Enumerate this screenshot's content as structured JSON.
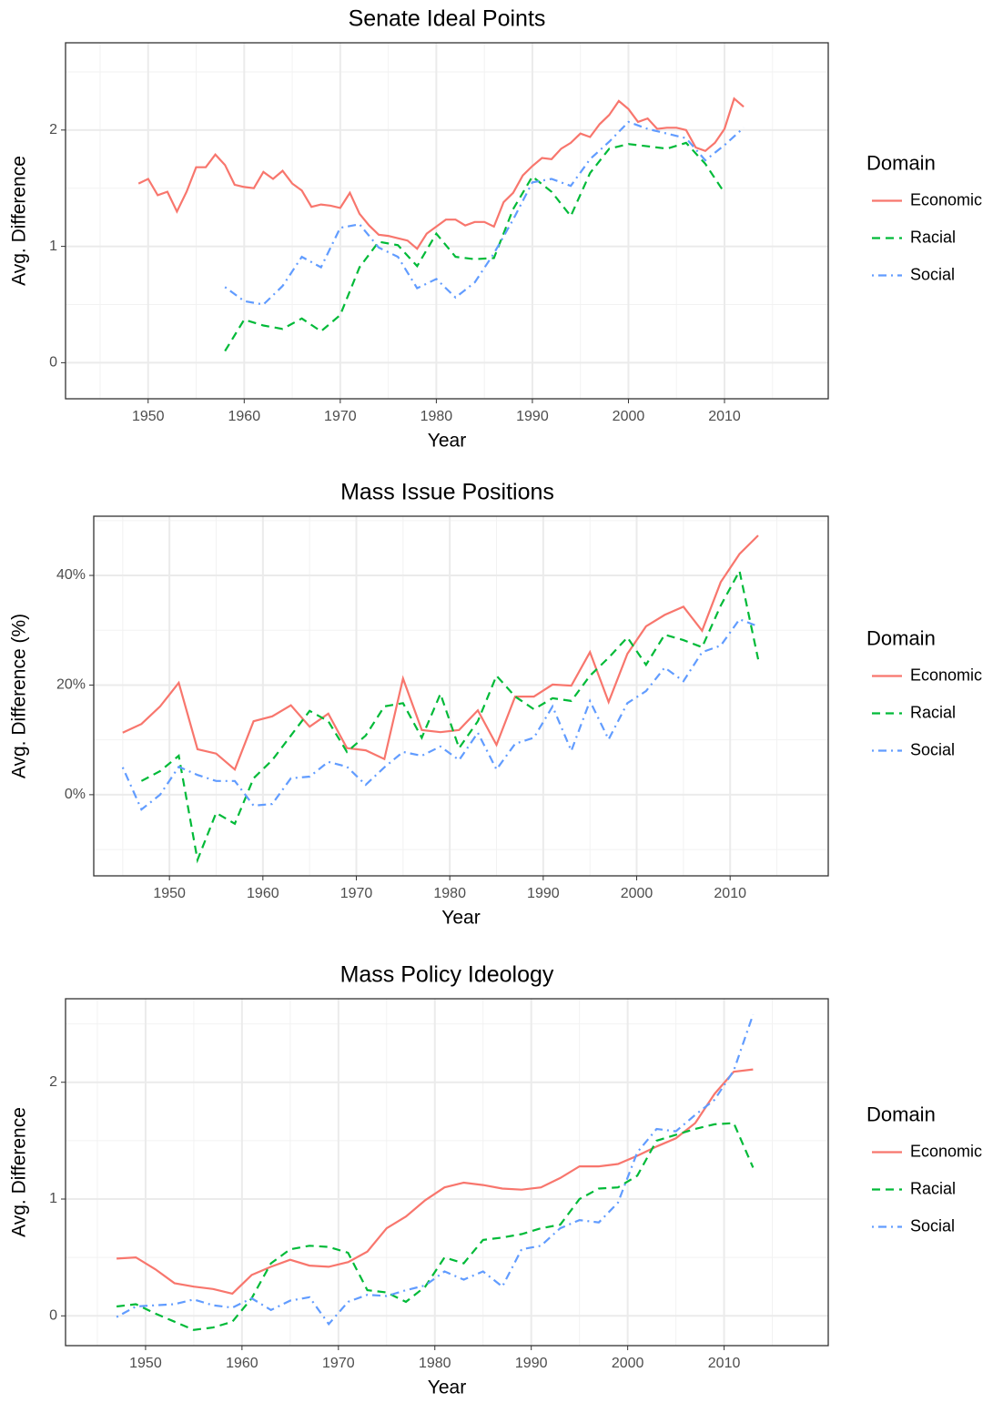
{
  "chart_data": [
    {
      "type": "line",
      "title": "Senate Ideal Points",
      "xlabel": "Year",
      "ylabel": "Avg. Difference",
      "legend_title": "Domain",
      "legend": "right",
      "grid": true,
      "minor_grid": true,
      "xlim": [
        1941.4,
        2020.8
      ],
      "ylim": [
        -0.31,
        2.75
      ],
      "xticks": [
        1950,
        1960,
        1970,
        1980,
        1990,
        2000,
        2010
      ],
      "yticks": [
        0,
        1,
        2
      ],
      "series": [
        {
          "name": "Economic",
          "color": "#F8766D",
          "dash": "solid",
          "x": [
            1949,
            1950,
            1951,
            1952,
            1953,
            1954,
            1955,
            1956,
            1957,
            1958,
            1959,
            1960,
            1961,
            1962,
            1963,
            1964,
            1965,
            1966,
            1967,
            1968,
            1969,
            1970,
            1971,
            1972,
            1973,
            1974,
            1975,
            1976,
            1977,
            1978,
            1979,
            1980,
            1981,
            1982,
            1983,
            1984,
            1985,
            1986,
            1987,
            1988,
            1989,
            1990,
            1991,
            1992,
            1993,
            1994,
            1995,
            1996,
            1997,
            1998,
            1999,
            2000,
            2001,
            2002,
            2003,
            2004,
            2005,
            2006,
            2007,
            2008,
            2009,
            2010,
            2011,
            2012
          ],
          "values": [
            1.54,
            1.58,
            1.44,
            1.47,
            1.3,
            1.47,
            1.68,
            1.68,
            1.79,
            1.7,
            1.53,
            1.51,
            1.5,
            1.64,
            1.58,
            1.65,
            1.54,
            1.48,
            1.34,
            1.36,
            1.35,
            1.33,
            1.46,
            1.28,
            1.18,
            1.1,
            1.09,
            1.07,
            1.05,
            0.98,
            1.11,
            1.17,
            1.23,
            1.23,
            1.18,
            1.21,
            1.21,
            1.17,
            1.38,
            1.46,
            1.61,
            1.69,
            1.76,
            1.75,
            1.84,
            1.89,
            1.97,
            1.94,
            2.05,
            2.13,
            2.25,
            2.18,
            2.07,
            2.1,
            2.01,
            2.02,
            2.02,
            2.0,
            1.85,
            1.82,
            1.89,
            2.01,
            2.27,
            2.2
          ]
        },
        {
          "name": "Racial",
          "color": "#00BA38",
          "dash": "dashed",
          "x": [
            1958,
            1960,
            1962,
            1964,
            1966,
            1968,
            1970,
            1972,
            1974,
            1976,
            1978,
            1980,
            1982,
            1984,
            1986,
            1988,
            1990,
            1992,
            1994,
            1996,
            1998,
            2000,
            2002,
            2004,
            2006,
            2008,
            2010
          ],
          "values": [
            0.1,
            0.37,
            0.32,
            0.29,
            0.38,
            0.27,
            0.41,
            0.82,
            1.04,
            1.01,
            0.83,
            1.11,
            0.91,
            0.89,
            0.9,
            1.32,
            1.6,
            1.47,
            1.26,
            1.63,
            1.84,
            1.88,
            1.86,
            1.84,
            1.89,
            1.71,
            1.46
          ]
        },
        {
          "name": "Social",
          "color": "#619CFF",
          "dash": "dotdash",
          "x": [
            1958,
            1960,
            1962,
            1964,
            1966,
            1968,
            1970,
            1972,
            1974,
            1976,
            1978,
            1980,
            1982,
            1984,
            1986,
            1988,
            1990,
            1992,
            1994,
            1996,
            1998,
            2000,
            2002,
            2004,
            2006,
            2008,
            2010,
            2012
          ],
          "values": [
            0.65,
            0.53,
            0.5,
            0.66,
            0.91,
            0.82,
            1.16,
            1.19,
            0.99,
            0.91,
            0.64,
            0.72,
            0.56,
            0.69,
            0.94,
            1.23,
            1.55,
            1.58,
            1.52,
            1.75,
            1.9,
            2.07,
            2.01,
            1.97,
            1.93,
            1.74,
            1.87,
            2.02
          ]
        }
      ]
    },
    {
      "type": "line",
      "title": "Mass Issue Positions",
      "xlabel": "Year",
      "ylabel": "Avg. Difference (%)",
      "legend_title": "Domain",
      "legend": "right",
      "grid": true,
      "minor_grid": true,
      "xlim": [
        1941.9,
        2020.5
      ],
      "ylim": [
        -14.8,
        50.8
      ],
      "xticks": [
        1950,
        1960,
        1970,
        1980,
        1990,
        2000,
        2010
      ],
      "yticks": [
        {
          "value": 0,
          "label": "0%"
        },
        {
          "value": 20,
          "label": "20%"
        },
        {
          "value": 40,
          "label": "40%"
        }
      ],
      "series": [
        {
          "name": "Economic",
          "color": "#F8766D",
          "dash": "solid",
          "x": [
            1945,
            1947,
            1949,
            1951,
            1953,
            1955,
            1957,
            1959,
            1961,
            1963,
            1965,
            1967,
            1969,
            1971,
            1973,
            1975,
            1977,
            1979,
            1981,
            1983,
            1985,
            1987,
            1989,
            1991,
            1993,
            1995,
            1997,
            1999,
            2001,
            2003,
            2005,
            2007,
            2009,
            2011,
            2013
          ],
          "values": [
            11.3,
            12.9,
            16.1,
            20.4,
            8.3,
            7.5,
            4.6,
            13.4,
            14.3,
            16.3,
            12.4,
            14.8,
            8.5,
            8.1,
            6.5,
            21.2,
            11.8,
            11.4,
            11.8,
            15.4,
            9.1,
            17.9,
            17.9,
            20.1,
            19.9,
            26.0,
            16.9,
            25.7,
            30.7,
            32.8,
            34.3,
            29.9,
            38.8,
            43.9,
            47.3
          ]
        },
        {
          "name": "Racial",
          "color": "#00BA38",
          "dash": "dashed",
          "x": [
            1947,
            1949,
            1951,
            1953,
            1955,
            1957,
            1959,
            1961,
            1963,
            1965,
            1967,
            1969,
            1971,
            1973,
            1975,
            1977,
            1979,
            1981,
            1983,
            1985,
            1987,
            1989,
            1991,
            1993,
            1995,
            1997,
            1999,
            2001,
            2003,
            2005,
            2007,
            2009,
            2011,
            2013
          ],
          "values": [
            2.5,
            4.3,
            7.1,
            -11.9,
            -3.3,
            -5.3,
            3.0,
            6.3,
            10.8,
            15.3,
            13.4,
            7.8,
            10.8,
            16.1,
            16.7,
            10.4,
            18.4,
            8.5,
            13.4,
            21.7,
            17.9,
            15.6,
            17.6,
            17.1,
            21.7,
            25.0,
            28.7,
            23.7,
            29.2,
            28.2,
            26.9,
            34.5,
            40.8,
            24.7
          ]
        },
        {
          "name": "Social",
          "color": "#619CFF",
          "dash": "dotdash",
          "x": [
            1945,
            1947,
            1949,
            1951,
            1953,
            1955,
            1957,
            1959,
            1961,
            1963,
            1965,
            1967,
            1969,
            1971,
            1973,
            1975,
            1977,
            1979,
            1981,
            1983,
            1985,
            1987,
            1989,
            1991,
            1993,
            1995,
            1997,
            1999,
            2001,
            2003,
            2005,
            2007,
            2009,
            2011,
            2013
          ],
          "values": [
            5.0,
            -2.7,
            0,
            5.1,
            3.6,
            2.5,
            2.5,
            -2.0,
            -1.7,
            3.0,
            3.3,
            6.0,
            5.1,
            1.8,
            5.0,
            7.8,
            7.1,
            8.8,
            6.3,
            11.3,
            4.6,
            9.3,
            10.4,
            16.1,
            8.0,
            17.1,
            10.1,
            16.7,
            18.9,
            23.2,
            20.7,
            26.0,
            27.2,
            32.0,
            30.7
          ]
        }
      ]
    },
    {
      "type": "line",
      "title": "Mass Policy Ideology",
      "xlabel": "Year",
      "ylabel": "Avg. Difference",
      "legend_title": "Domain",
      "legend": "right",
      "grid": true,
      "minor_grid": true,
      "xlim": [
        1941.7,
        2020.8
      ],
      "ylim": [
        -0.255,
        2.715
      ],
      "xticks": [
        1950,
        1960,
        1970,
        1980,
        1990,
        2000,
        2010
      ],
      "yticks": [
        0,
        1,
        2
      ],
      "series": [
        {
          "name": "Economic",
          "color": "#F8766D",
          "dash": "solid",
          "x": [
            1947,
            1949,
            1951,
            1953,
            1955,
            1957,
            1959,
            1961,
            1963,
            1965,
            1967,
            1969,
            1971,
            1973,
            1975,
            1977,
            1979,
            1981,
            1983,
            1985,
            1987,
            1989,
            1991,
            1993,
            1995,
            1997,
            1999,
            2001,
            2003,
            2005,
            2007,
            2009,
            2011,
            2013
          ],
          "values": [
            0.49,
            0.5,
            0.4,
            0.28,
            0.25,
            0.23,
            0.19,
            0.35,
            0.42,
            0.48,
            0.43,
            0.42,
            0.46,
            0.55,
            0.75,
            0.85,
            0.99,
            1.1,
            1.14,
            1.12,
            1.09,
            1.08,
            1.1,
            1.18,
            1.28,
            1.28,
            1.3,
            1.37,
            1.45,
            1.52,
            1.65,
            1.9,
            2.09,
            2.11
          ]
        },
        {
          "name": "Racial",
          "color": "#00BA38",
          "dash": "dashed",
          "x": [
            1947,
            1949,
            1951,
            1953,
            1955,
            1957,
            1959,
            1961,
            1963,
            1965,
            1967,
            1969,
            1971,
            1973,
            1975,
            1977,
            1979,
            1981,
            1983,
            1985,
            1987,
            1989,
            1991,
            1993,
            1995,
            1997,
            1999,
            2001,
            2003,
            2005,
            2007,
            2009,
            2011,
            2013
          ],
          "values": [
            0.08,
            0.1,
            0.02,
            -0.05,
            -0.12,
            -0.1,
            -0.05,
            0.15,
            0.45,
            0.57,
            0.6,
            0.59,
            0.54,
            0.22,
            0.2,
            0.12,
            0.25,
            0.5,
            0.45,
            0.65,
            0.67,
            0.7,
            0.75,
            0.78,
            1.0,
            1.09,
            1.1,
            1.2,
            1.5,
            1.55,
            1.6,
            1.64,
            1.65,
            1.27
          ]
        },
        {
          "name": "Social",
          "color": "#619CFF",
          "dash": "dotdash",
          "x": [
            1947,
            1949,
            1951,
            1953,
            1955,
            1957,
            1959,
            1961,
            1963,
            1965,
            1967,
            1969,
            1971,
            1973,
            1975,
            1977,
            1979,
            1981,
            1983,
            1985,
            1987,
            1989,
            1991,
            1993,
            1995,
            1997,
            1999,
            2001,
            2003,
            2005,
            2007,
            2009,
            2011,
            2013
          ],
          "values": [
            -0.01,
            0.08,
            0.09,
            0.1,
            0.14,
            0.09,
            0.07,
            0.15,
            0.05,
            0.13,
            0.16,
            -0.07,
            0.12,
            0.18,
            0.17,
            0.22,
            0.26,
            0.38,
            0.31,
            0.38,
            0.25,
            0.57,
            0.6,
            0.75,
            0.82,
            0.8,
            0.97,
            1.4,
            1.6,
            1.58,
            1.72,
            1.85,
            2.1,
            2.58
          ]
        }
      ]
    }
  ]
}
